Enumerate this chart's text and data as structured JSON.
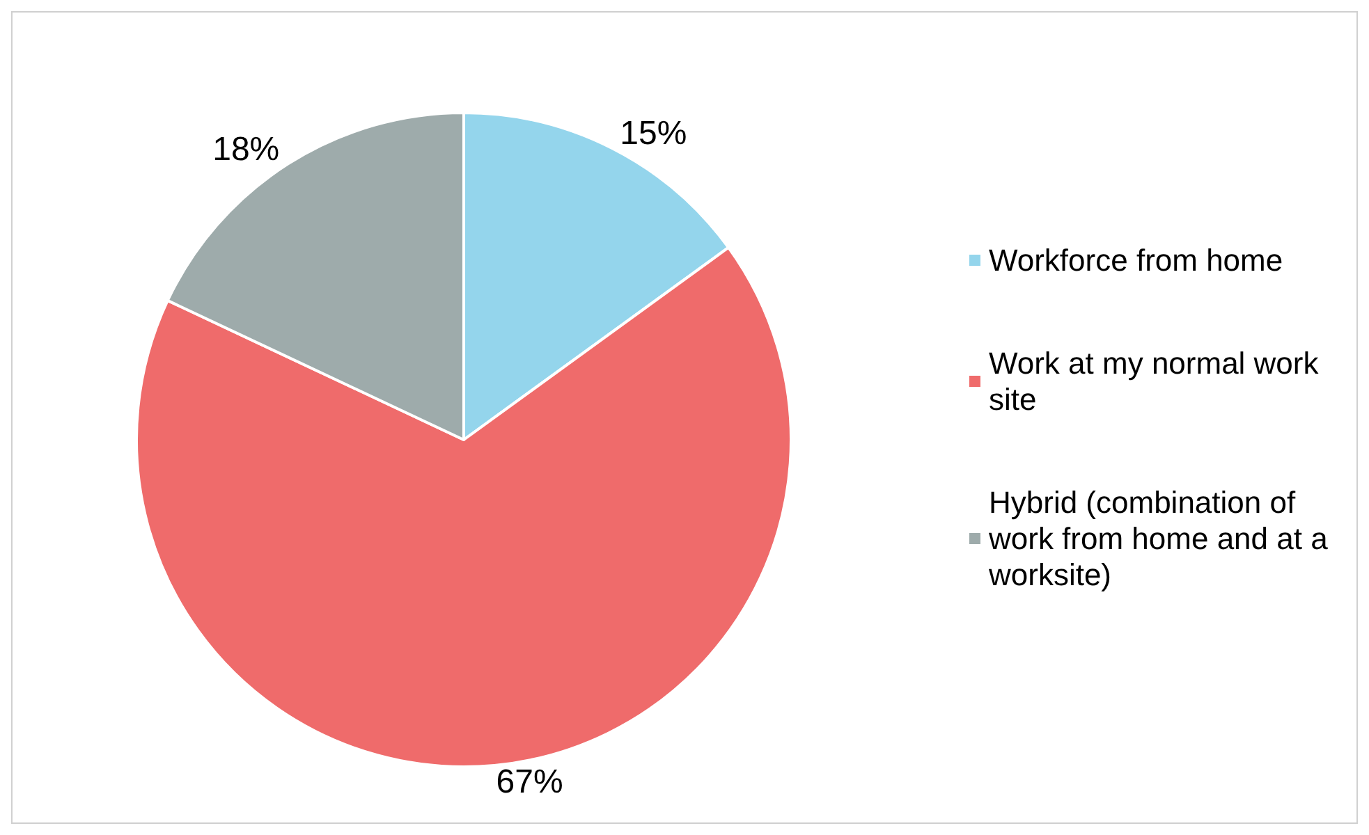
{
  "chart_data": {
    "type": "pie",
    "categories": [
      "Workforce from home",
      "Work at my normal work site",
      "Hybrid (combination of work from home and at a worksite)"
    ],
    "values": [
      15,
      67,
      18
    ],
    "colors": [
      "#94d5ec",
      "#ef6b6b",
      "#9eabab"
    ],
    "value_labels": [
      "15%",
      "67%",
      "18%"
    ],
    "legend": "right"
  }
}
